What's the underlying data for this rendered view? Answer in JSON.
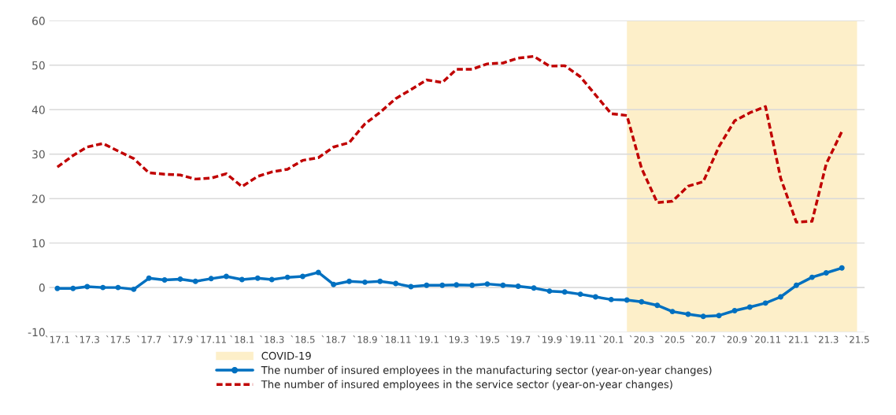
{
  "chart_data": {
    "type": "line",
    "x": [
      "2017-01",
      "2017-02",
      "2017-03",
      "2017-04",
      "2017-05",
      "2017-06",
      "2017-07",
      "2017-08",
      "2017-09",
      "2017-10",
      "2017-11",
      "2017-12",
      "2018-01",
      "2018-02",
      "2018-03",
      "2018-04",
      "2018-05",
      "2018-06",
      "2018-07",
      "2018-08",
      "2018-09",
      "2018-10",
      "2018-11",
      "2018-12",
      "2019-01",
      "2019-02",
      "2019-03",
      "2019-04",
      "2019-05",
      "2019-06",
      "2019-07",
      "2019-08",
      "2019-09",
      "2019-10",
      "2019-11",
      "2019-12",
      "2020-01",
      "2020-02",
      "2020-03",
      "2020-04",
      "2020-05",
      "2020-06",
      "2020-07",
      "2020-08",
      "2020-09",
      "2020-10",
      "2020-11",
      "2020-12",
      "2021-01",
      "2021-02",
      "2021-03",
      "2021-04"
    ],
    "series": [
      {
        "name": "The number of insured employees in the manufacturing sector (year-on-year changes)",
        "color": "#0070c0",
        "marker": "circle",
        "line_style": "solid",
        "values": [
          -0.2,
          -0.2,
          0.2,
          0,
          0,
          -0.4,
          2.1,
          1.7,
          1.9,
          1.4,
          2.0,
          2.5,
          1.8,
          2.1,
          1.8,
          2.3,
          2.5,
          3.4,
          0.7,
          1.4,
          1.2,
          1.4,
          0.9,
          0.2,
          0.5,
          0.5,
          0.6,
          0.5,
          0.8,
          0.5,
          0.3,
          -0.1,
          -0.8,
          -1.0,
          -1.5,
          -2.1,
          -2.7,
          -2.8,
          -3.2,
          -4.0,
          -5.4,
          -6.0,
          -6.5,
          -6.3,
          -5.2,
          -4.4,
          -3.5,
          -2.1,
          0.5,
          2.3,
          3.3,
          4.4
        ]
      },
      {
        "name": "The number of insured employees in the service sector (year-on-year changes)",
        "color": "#c00000",
        "marker": "none",
        "line_style": "dashed",
        "values": [
          27.1,
          29.7,
          31.6,
          32.4,
          30.7,
          29.0,
          25.8,
          25.5,
          25.3,
          24.4,
          24.6,
          25.6,
          22.7,
          25.0,
          26.0,
          26.6,
          28.6,
          29.2,
          31.6,
          32.6,
          36.8,
          39.4,
          42.5,
          44.5,
          46.7,
          46.1,
          49.1,
          49.1,
          50.3,
          50.5,
          51.6,
          52.0,
          49.8,
          49.9,
          47.4,
          43.3,
          39.1,
          38.7,
          26.8,
          19.1,
          19.4,
          22.8,
          23.8,
          31.7,
          37.5,
          39.3,
          40.7,
          24.6,
          14.7,
          14.9,
          27.8,
          35.1
        ]
      }
    ],
    "xlim": [
      "2016-12-16",
      "2021-05-16"
    ],
    "xticks": [
      {
        "value": "2017-01",
        "label": "`17.1"
      },
      {
        "value": "2017-03",
        "label": "`17.3"
      },
      {
        "value": "2017-05",
        "label": "`17.5"
      },
      {
        "value": "2017-07",
        "label": "`17.7"
      },
      {
        "value": "2017-09",
        "label": "`17.9"
      },
      {
        "value": "2017-11",
        "label": "`17.11"
      },
      {
        "value": "2018-01",
        "label": "`18.1"
      },
      {
        "value": "2018-03",
        "label": "`18.3"
      },
      {
        "value": "2018-05",
        "label": "`18.5"
      },
      {
        "value": "2018-07",
        "label": "`18.7"
      },
      {
        "value": "2018-09",
        "label": "`18.9"
      },
      {
        "value": "2018-11",
        "label": "`18.11"
      },
      {
        "value": "2019-01",
        "label": "`19.1"
      },
      {
        "value": "2019-03",
        "label": "`19.3"
      },
      {
        "value": "2019-05",
        "label": "`19.5"
      },
      {
        "value": "2019-07",
        "label": "`19.7"
      },
      {
        "value": "2019-09",
        "label": "`19.9"
      },
      {
        "value": "2019-11",
        "label": "`19.11"
      },
      {
        "value": "2020-01",
        "label": "`20.1"
      },
      {
        "value": "2020-03",
        "label": "`20.3"
      },
      {
        "value": "2020-05",
        "label": "`20.5"
      },
      {
        "value": "2020-07",
        "label": "`20.7"
      },
      {
        "value": "2020-09",
        "label": "`20.9"
      },
      {
        "value": "2020-11",
        "label": "`20.11"
      },
      {
        "value": "2021-01",
        "label": "`21.1"
      },
      {
        "value": "2021-03",
        "label": "`21.3"
      },
      {
        "value": "2021-05",
        "label": "`21.5"
      }
    ],
    "ylim": [
      -10,
      60
    ],
    "yticks": [
      -10,
      0,
      10,
      20,
      30,
      40,
      50,
      60
    ],
    "bands": [
      {
        "axis": "x",
        "from": "2020-02",
        "to": "2021-05",
        "label": "COVID-19",
        "color": "#fdefc9"
      }
    ],
    "grid": "y",
    "legend": "bottom"
  }
}
